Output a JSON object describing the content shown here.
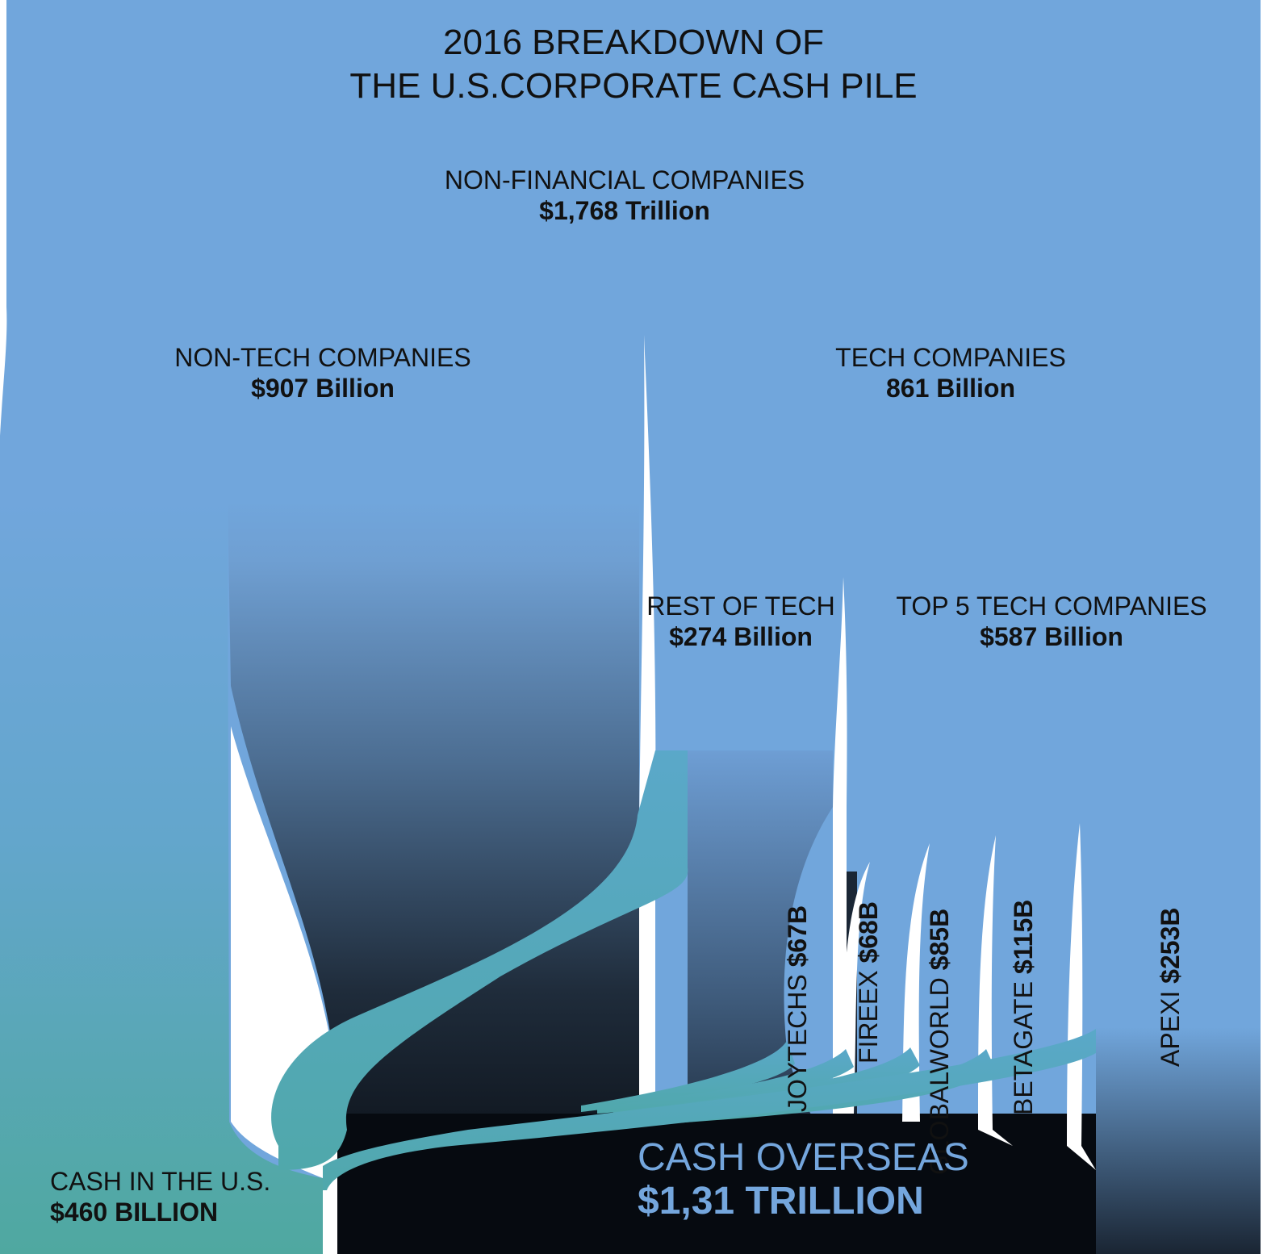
{
  "title": [
    "2016 BREAKDOWN OF",
    "THE U.S.CORPORATE CASH PILE"
  ],
  "colors": {
    "sky": "#71a6dc",
    "teal": "#5aa9c6",
    "teal_dark": "#4fa79f",
    "overseas_dark": "#05070b",
    "overseas_label": "#74a6dd"
  },
  "nodes": {
    "non_financial": {
      "name": "NON-FINANCIAL COMPANIES",
      "value": "$1,768 Trillion"
    },
    "non_tech": {
      "name": "NON-TECH COMPANIES",
      "value": "$907 Billion"
    },
    "tech": {
      "name": "TECH COMPANIES",
      "value": "861 Billion"
    },
    "rest_of_tech": {
      "name": "REST OF TECH",
      "value": "$274 Billion"
    },
    "top5": {
      "name": "TOP 5 TECH COMPANIES",
      "value": "$587 Billion"
    },
    "cash_us": {
      "name": "CASH IN THE U.S.",
      "value": "$460 BILLION"
    },
    "cash_overseas": {
      "name": "CASH OVERSEAS",
      "value": "$1,31 TRILLION"
    }
  },
  "companies": [
    {
      "name": "JOYTECHS",
      "value": "$67B"
    },
    {
      "name": "FIREEX",
      "value": "$68B"
    },
    {
      "name": "GLOBALWORLD",
      "value": "$85B"
    },
    {
      "name": "BETAGATE",
      "value": "$115B"
    },
    {
      "name": "APEXI",
      "value": "$253B"
    }
  ]
}
